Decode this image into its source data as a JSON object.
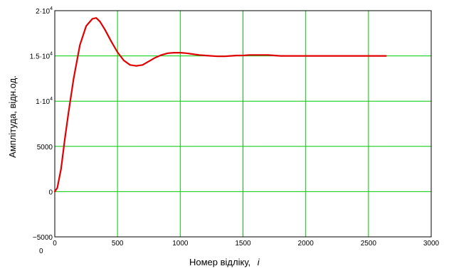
{
  "chart_data": {
    "type": "line",
    "xlabel": "Номер відліку,",
    "xlabel_var": "i",
    "ylabel": "Амплітуда, відн.од.",
    "xlim": [
      0,
      3000
    ],
    "ylim": [
      -5000,
      20000
    ],
    "grid": true,
    "grid_color": "#00cc00",
    "line_color": "#e00000",
    "x_ticks": [
      0,
      500,
      1000,
      1500,
      2000,
      2500,
      3000
    ],
    "x_tick_labels": [
      "0",
      "500",
      "1000",
      "1500",
      "2000",
      "2500",
      "3000"
    ],
    "y_ticks": [
      {
        "value": -5000,
        "mant": "−5000",
        "exp": ""
      },
      {
        "value": 0,
        "mant": "0",
        "exp": ""
      },
      {
        "value": 5000,
        "mant": "5000",
        "exp": ""
      },
      {
        "value": 10000,
        "mant": "1·10",
        "exp": "4"
      },
      {
        "value": 15000,
        "mant": "1.5·10",
        "exp": "4"
      },
      {
        "value": 20000,
        "mant": "2·10",
        "exp": "4"
      }
    ],
    "corner_label": "0",
    "series": [
      {
        "x": [
          0,
          20,
          50,
          80,
          110,
          150,
          200,
          250,
          300,
          330,
          360,
          400,
          450,
          500,
          550,
          600,
          650,
          700,
          750,
          800,
          850,
          900,
          950,
          1000,
          1050,
          1100,
          1150,
          1200,
          1250,
          1300,
          1350,
          1400,
          1450,
          1500,
          1550,
          1600,
          1650,
          1700,
          1750,
          1800,
          1900,
          2000,
          2100,
          2200,
          2300,
          2400,
          2500,
          2640
        ],
        "y": [
          0,
          400,
          2500,
          5800,
          8800,
          12500,
          16200,
          18300,
          19100,
          19200,
          18800,
          17900,
          16600,
          15400,
          14500,
          14000,
          13900,
          14000,
          14400,
          14800,
          15100,
          15300,
          15350,
          15350,
          15300,
          15200,
          15100,
          15050,
          15000,
          14950,
          14950,
          15000,
          15050,
          15050,
          15100,
          15100,
          15100,
          15100,
          15050,
          15000,
          15000,
          15000,
          15000,
          15000,
          15000,
          15000,
          15000,
          15000
        ]
      }
    ]
  }
}
